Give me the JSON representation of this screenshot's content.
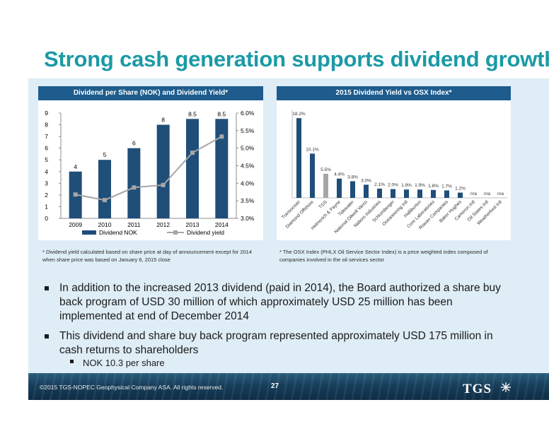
{
  "slide": {
    "title": "Strong cash generation supports dividend growth",
    "page_number": "27",
    "copyright": "©2015 TGS-NOPEC Geophysical Company ASA. All rights reserved.",
    "logo": "TGS",
    "logo_icon": "star-burst-icon"
  },
  "chart_data": [
    {
      "type": "bar",
      "title": "Dividend per Share (NOK) and Dividend Yield*",
      "categories": [
        "2009",
        "2010",
        "2011",
        "2012",
        "2013",
        "2014"
      ],
      "series": [
        {
          "name": "Dividend NOK",
          "type": "bar",
          "axis": "left",
          "values": [
            4,
            5,
            6,
            8,
            8.5,
            8.5
          ],
          "labels": [
            "4",
            "5",
            "6",
            "8",
            "8.5",
            "8.5"
          ],
          "color": "#1f4e79"
        },
        {
          "name": "Dividend yield",
          "type": "line",
          "axis": "right",
          "values": [
            3.68,
            3.52,
            3.88,
            3.95,
            4.87,
            5.33
          ],
          "color": "#a6a6a6"
        }
      ],
      "ylim": [
        0,
        9
      ],
      "yticks": [
        "0",
        "1",
        "2",
        "3",
        "4",
        "5",
        "6",
        "7",
        "8",
        "9"
      ],
      "y2lim": [
        3.0,
        6.0
      ],
      "y2ticks": [
        "3.0%",
        "3.5%",
        "4.0%",
        "4.5%",
        "5.0%",
        "5.5%",
        "6.0%"
      ],
      "grid": false,
      "legend": "bottom"
    },
    {
      "type": "bar",
      "title": "2015 Dividend Yield vs OSX Index*",
      "categories": [
        "Transocean",
        "Diamond Offshore",
        "TGS",
        "Helmerich & Payne",
        "Tidewater",
        "National Oilwell Varco",
        "Nabors Industries",
        "Schlumberger",
        "Oceaneering Intl",
        "Halliburton",
        "Core Laboratories",
        "Rowan Companies",
        "Baker Hughes",
        "Cameron Intl",
        "Oil States Intl",
        "Weatherford Intl"
      ],
      "values": [
        18.2,
        10.1,
        5.5,
        4.4,
        3.8,
        3.0,
        2.1,
        2.0,
        1.9,
        1.9,
        1.8,
        1.7,
        1.2,
        0,
        0,
        0
      ],
      "labels": [
        "18.2%",
        "10.1%",
        "5.5%",
        "4.4%",
        "3.8%",
        "3.0%",
        "2.1%",
        "2.0%",
        "1.9%",
        "1.9%",
        "1.8%",
        "1.7%",
        "1.2%",
        "n/a",
        "n/a",
        "n/a"
      ],
      "colors": {
        "default": "#1f4e79",
        "highlight": "#a6a6a6"
      },
      "highlight_index": 2,
      "ylim": [
        0,
        20
      ],
      "grid": false,
      "legend": "none"
    }
  ],
  "footnotes": {
    "left": "* Dividend yield calculated based on share price at day of announcement except for 2014 when share price was based on January 6, 2015 close",
    "right": "* The OSX Index (PHLX Oil Service Sector Index) is a price weighted index composed of companies involved in the oil services sector"
  },
  "bullets": {
    "first": "In addition to the increased 2013 dividend (paid in 2014), the Board authorized a share buy back program of USD 30 million of which approximately USD 25 million has been implemented at end of December 2014",
    "second": "This dividend and share buy back program represented approximately USD 175 million in cash returns to shareholders",
    "sub": "NOK 10.3 per share"
  }
}
